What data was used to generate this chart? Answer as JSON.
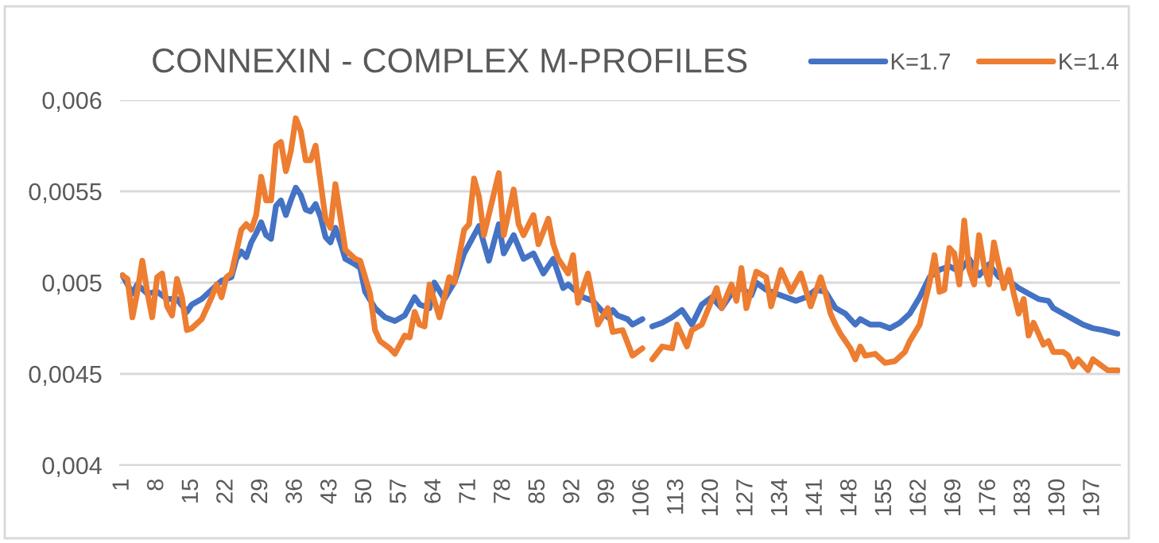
{
  "chart_data": {
    "type": "line",
    "title": "CONNEXIN - COMPLEX M-PROFILES",
    "series": [
      {
        "name": "K=1.7",
        "color": "#4472c4",
        "x": [
          1,
          3,
          4,
          6,
          8,
          10,
          12,
          14,
          15,
          17,
          19,
          21,
          23,
          24,
          25,
          26,
          27,
          28,
          29,
          30,
          31,
          32,
          33,
          34,
          35,
          36,
          37,
          38,
          39,
          40,
          41,
          42,
          43,
          44,
          45,
          46,
          48,
          49,
          50,
          52,
          54,
          56,
          58,
          60,
          61,
          63,
          64,
          66,
          68,
          70,
          73,
          75,
          77,
          78,
          80,
          82,
          84,
          86,
          88,
          90,
          91,
          94,
          96,
          98,
          99,
          100,
          101,
          103,
          104,
          106,
          107,
          108,
          110,
          112,
          114,
          116,
          118,
          120,
          122,
          124,
          126,
          128,
          129,
          131,
          133,
          135,
          137,
          139,
          141,
          143,
          145,
          147,
          149,
          150,
          152,
          154,
          156,
          158,
          160,
          162,
          164,
          166,
          168,
          170,
          172,
          174,
          176,
          178,
          180,
          182,
          184,
          186,
          188,
          189,
          191,
          193,
          195,
          197,
          199,
          202
        ],
        "values": [
          0.00504,
          0.00494,
          0.00499,
          0.00494,
          0.00495,
          0.00491,
          0.00491,
          0.00484,
          0.00488,
          0.00491,
          0.00496,
          0.00501,
          0.00503,
          0.00513,
          0.00517,
          0.00514,
          0.00522,
          0.00527,
          0.00533,
          0.00526,
          0.00524,
          0.00542,
          0.00545,
          0.00537,
          0.00545,
          0.00552,
          0.00548,
          0.0054,
          0.00539,
          0.00543,
          0.00536,
          0.00525,
          0.00522,
          0.0053,
          0.00522,
          0.00513,
          0.0051,
          0.00508,
          0.00495,
          0.00486,
          0.00481,
          0.00479,
          0.00482,
          0.00492,
          0.00488,
          0.00486,
          0.005,
          0.00491,
          0.005,
          0.00516,
          0.00531,
          0.00512,
          0.00532,
          0.00516,
          0.00526,
          0.00513,
          0.00516,
          0.00505,
          0.00513,
          0.00497,
          0.00499,
          0.00492,
          0.0049,
          0.00484,
          0.00481,
          0.00485,
          0.00482,
          0.0048,
          0.00477,
          0.0048,
          null,
          0.00476,
          0.00478,
          0.00481,
          0.00485,
          0.00477,
          0.00488,
          0.00492,
          0.00486,
          0.00494,
          0.00497,
          0.00493,
          0.005,
          0.00496,
          0.00494,
          0.00492,
          0.0049,
          0.00492,
          0.00496,
          0.00495,
          0.00486,
          0.00483,
          0.00477,
          0.0048,
          0.00477,
          0.00477,
          0.00475,
          0.00478,
          0.00483,
          0.00492,
          0.00503,
          0.00507,
          0.00509,
          0.00506,
          0.00513,
          0.00504,
          0.0051,
          0.00503,
          0.00501,
          0.00497,
          0.00494,
          0.00491,
          0.0049,
          0.00486,
          0.00483,
          0.0048,
          0.00477,
          0.00475,
          0.00474,
          0.00472
        ]
      },
      {
        "name": "K=1.4",
        "color": "#ed7d31",
        "x": [
          1,
          2,
          3,
          4,
          5,
          6,
          7,
          8,
          9,
          10,
          11,
          12,
          13,
          14,
          15,
          17,
          19,
          20,
          21,
          22,
          23,
          25,
          26,
          27,
          28,
          29,
          30,
          31,
          32,
          33,
          34,
          35,
          36,
          37,
          38,
          39,
          40,
          42,
          43,
          44,
          46,
          48,
          49,
          51,
          52,
          53,
          55,
          56,
          57,
          58,
          59,
          60,
          61,
          62,
          63,
          65,
          67,
          68,
          70,
          71,
          72,
          73,
          74,
          77,
          78,
          80,
          81,
          82,
          84,
          85,
          87,
          88,
          89,
          90,
          91,
          92,
          93,
          95,
          97,
          99,
          100,
          102,
          104,
          106,
          107,
          108,
          110,
          112,
          113,
          115,
          116,
          118,
          121,
          122,
          124,
          125,
          126,
          127,
          129,
          131,
          132,
          134,
          136,
          138,
          140,
          142,
          143,
          144,
          145,
          146,
          147,
          148,
          149,
          150,
          151,
          153,
          155,
          157,
          159,
          160,
          162,
          164,
          165,
          166,
          167,
          168,
          169,
          170,
          171,
          172,
          173,
          174,
          175,
          176,
          177,
          178,
          179,
          180,
          181,
          182,
          183,
          184,
          185,
          187,
          188,
          189,
          191,
          192,
          193,
          194,
          196,
          197,
          199,
          200,
          202
        ],
        "values": [
          0.00504,
          0.00502,
          0.00481,
          0.00495,
          0.00512,
          0.00495,
          0.00481,
          0.00503,
          0.00505,
          0.00487,
          0.00482,
          0.00502,
          0.00492,
          0.00474,
          0.00475,
          0.0048,
          0.00492,
          0.00499,
          0.00492,
          0.00503,
          0.00505,
          0.00529,
          0.00532,
          0.00529,
          0.00537,
          0.00558,
          0.00545,
          0.00545,
          0.00575,
          0.00577,
          0.00561,
          0.00572,
          0.0059,
          0.00583,
          0.00567,
          0.00567,
          0.00575,
          0.00535,
          0.0053,
          0.00554,
          0.00518,
          0.00513,
          0.00512,
          0.00494,
          0.00474,
          0.00468,
          0.00464,
          0.00461,
          0.00466,
          0.00471,
          0.0047,
          0.00484,
          0.00477,
          0.00476,
          0.00499,
          0.00481,
          0.00503,
          0.005,
          0.00529,
          0.00532,
          0.00557,
          0.00547,
          0.00526,
          0.0056,
          0.00526,
          0.00551,
          0.00532,
          0.00526,
          0.00537,
          0.00521,
          0.00535,
          0.00521,
          0.00513,
          0.00509,
          0.00505,
          0.00515,
          0.00489,
          0.00505,
          0.00477,
          0.00486,
          0.00473,
          0.00474,
          0.0046,
          0.00464,
          null,
          0.00458,
          0.00465,
          0.00464,
          0.00477,
          0.00465,
          0.00474,
          0.00477,
          0.00497,
          0.00486,
          0.00499,
          0.0049,
          0.00508,
          0.00486,
          0.00506,
          0.00503,
          0.00487,
          0.00507,
          0.00495,
          0.00505,
          0.00487,
          0.00503,
          0.00494,
          0.00483,
          0.00477,
          0.00472,
          0.00468,
          0.00464,
          0.00458,
          0.00465,
          0.0046,
          0.00461,
          0.00456,
          0.00457,
          0.00462,
          0.00468,
          0.00477,
          0.005,
          0.00515,
          0.00495,
          0.00496,
          0.00519,
          0.00516,
          0.00499,
          0.00534,
          0.00507,
          0.00499,
          0.00526,
          0.00509,
          0.00499,
          0.00522,
          0.00509,
          0.00497,
          0.00507,
          0.00494,
          0.00483,
          0.00491,
          0.00471,
          0.00478,
          0.00466,
          0.00468,
          0.00462,
          0.00462,
          0.0046,
          0.00454,
          0.00458,
          0.00452,
          0.00458,
          0.00454,
          0.00452,
          0.00452
        ]
      }
    ],
    "xlim": [
      0.5,
      202.5
    ],
    "xticks": [
      1,
      8,
      15,
      22,
      29,
      36,
      43,
      50,
      57,
      64,
      71,
      78,
      85,
      92,
      99,
      106,
      113,
      120,
      127,
      134,
      141,
      148,
      155,
      162,
      169,
      176,
      183,
      190,
      197
    ],
    "ylim": [
      0.004,
      0.006
    ],
    "yticks": [
      {
        "value": 0.004,
        "label": "0,004"
      },
      {
        "value": 0.0045,
        "label": "0,0045"
      },
      {
        "value": 0.005,
        "label": "0,005"
      },
      {
        "value": 0.0055,
        "label": "0,0055"
      },
      {
        "value": 0.006,
        "label": "0,006"
      }
    ],
    "grid": "y",
    "legend": "top right",
    "marker": "none",
    "line_style": "solid"
  }
}
